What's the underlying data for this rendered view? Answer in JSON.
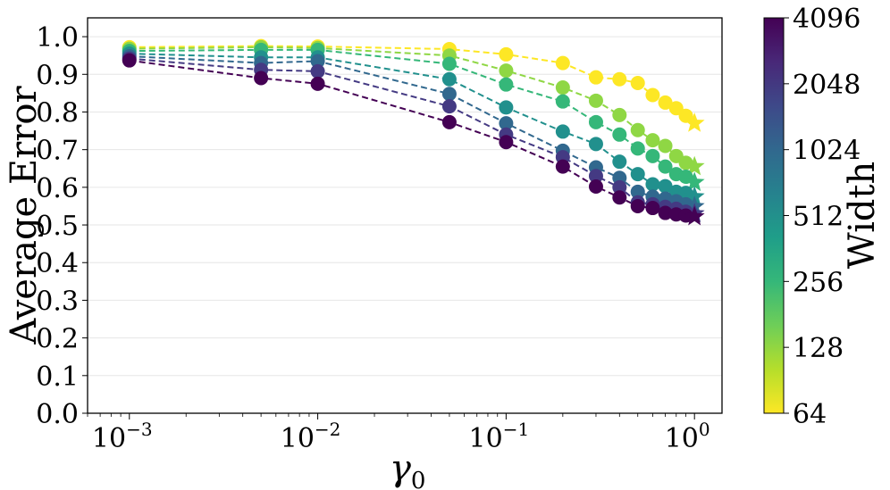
{
  "chart_data": {
    "type": "line",
    "xscale": "log",
    "xlabel": "γ",
    "xlabel_sub": "0",
    "ylabel": "Average Error",
    "xlim": [
      0.0006,
      1.4
    ],
    "ylim": [
      0,
      1.05
    ],
    "x_ticks": [
      {
        "value": 0.001,
        "base": "10",
        "exp": "−3"
      },
      {
        "value": 0.01,
        "base": "10",
        "exp": "−2"
      },
      {
        "value": 0.1,
        "base": "10",
        "exp": "−1"
      },
      {
        "value": 1,
        "base": "10",
        "exp": "0"
      }
    ],
    "y_ticks": [
      "0.0",
      "0.1",
      "0.2",
      "0.3",
      "0.4",
      "0.5",
      "0.6",
      "0.7",
      "0.8",
      "0.9",
      "1.0"
    ],
    "grid": true,
    "x": [
      0.001,
      0.005,
      0.01,
      0.05,
      0.1,
      0.2,
      0.3,
      0.4,
      0.5,
      0.6,
      0.7,
      0.8,
      0.9,
      1.0
    ],
    "final_marker": "star",
    "series": [
      {
        "name": "64",
        "color": "#fde725",
        "values": [
          0.972,
          0.975,
          0.974,
          0.967,
          0.953,
          0.93,
          0.892,
          0.887,
          0.877,
          0.845,
          0.825,
          0.81,
          0.79,
          0.77
        ]
      },
      {
        "name": "128",
        "color": "#8fd744",
        "values": [
          0.968,
          0.972,
          0.97,
          0.95,
          0.91,
          0.865,
          0.83,
          0.792,
          0.752,
          0.725,
          0.71,
          0.683,
          0.665,
          0.655
        ]
      },
      {
        "name": "256",
        "color": "#35b779",
        "values": [
          0.962,
          0.965,
          0.965,
          0.928,
          0.873,
          0.828,
          0.773,
          0.74,
          0.703,
          0.683,
          0.655,
          0.635,
          0.628,
          0.613
        ]
      },
      {
        "name": "512",
        "color": "#21908d",
        "values": [
          0.955,
          0.945,
          0.945,
          0.887,
          0.812,
          0.748,
          0.715,
          0.668,
          0.635,
          0.608,
          0.603,
          0.588,
          0.585,
          0.575
        ]
      },
      {
        "name": "1024",
        "color": "#31688e",
        "values": [
          0.948,
          0.93,
          0.935,
          0.848,
          0.77,
          0.697,
          0.653,
          0.625,
          0.588,
          0.575,
          0.57,
          0.563,
          0.555,
          0.549
        ]
      },
      {
        "name": "2048",
        "color": "#443a83",
        "values": [
          0.942,
          0.912,
          0.908,
          0.815,
          0.74,
          0.68,
          0.63,
          0.6,
          0.56,
          0.555,
          0.548,
          0.543,
          0.535,
          0.53
        ]
      },
      {
        "name": "4096",
        "color": "#440154",
        "values": [
          0.937,
          0.89,
          0.875,
          0.773,
          0.72,
          0.655,
          0.602,
          0.573,
          0.55,
          0.545,
          0.532,
          0.528,
          0.525,
          0.522
        ]
      }
    ],
    "colorbar": {
      "label": "Width",
      "ticks": [
        "64",
        "128",
        "256",
        "512",
        "1024",
        "2048",
        "4096"
      ],
      "stops": [
        "#fde725",
        "#b5de2b",
        "#6ece58",
        "#35b779",
        "#1f9e89",
        "#26828e",
        "#31688e",
        "#3e4989",
        "#482878",
        "#440154"
      ]
    }
  }
}
